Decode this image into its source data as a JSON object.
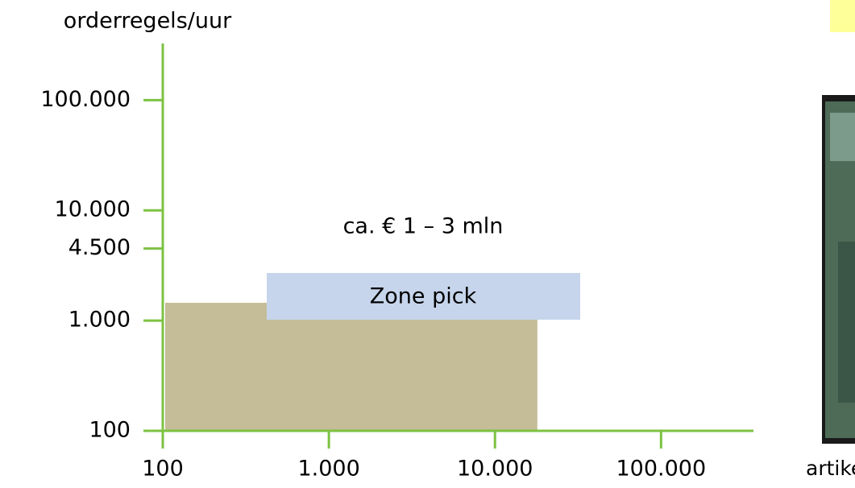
{
  "chart_data": {
    "type": "region",
    "y_label": "orderregels/uur",
    "x_label": "artikelen",
    "annotation": "ca. € 1 – 3 mln",
    "box_label": "Zone pick",
    "log_x": true,
    "log_y": true,
    "xlim": [
      100,
      360000
    ],
    "ylim": [
      100,
      300000
    ],
    "xticks": [
      100,
      {
        "value": 1000,
        "label": "1.000"
      },
      {
        "value": 10000,
        "label": "10.000"
      },
      {
        "value": 100000,
        "label": "100.000"
      }
    ],
    "yticks": [
      100,
      {
        "value": 1000,
        "label": "1.000"
      },
      {
        "value": 4500,
        "label": "4.500"
      },
      {
        "value": 10000,
        "label": "10.000"
      },
      {
        "value": 100000,
        "label": "100.000"
      }
    ],
    "axis_color": "#7dc242",
    "regions": [
      {
        "x": [
          100,
          18000
        ],
        "y": [
          100,
          1450
        ],
        "color": "#c4bd97"
      }
    ]
  }
}
